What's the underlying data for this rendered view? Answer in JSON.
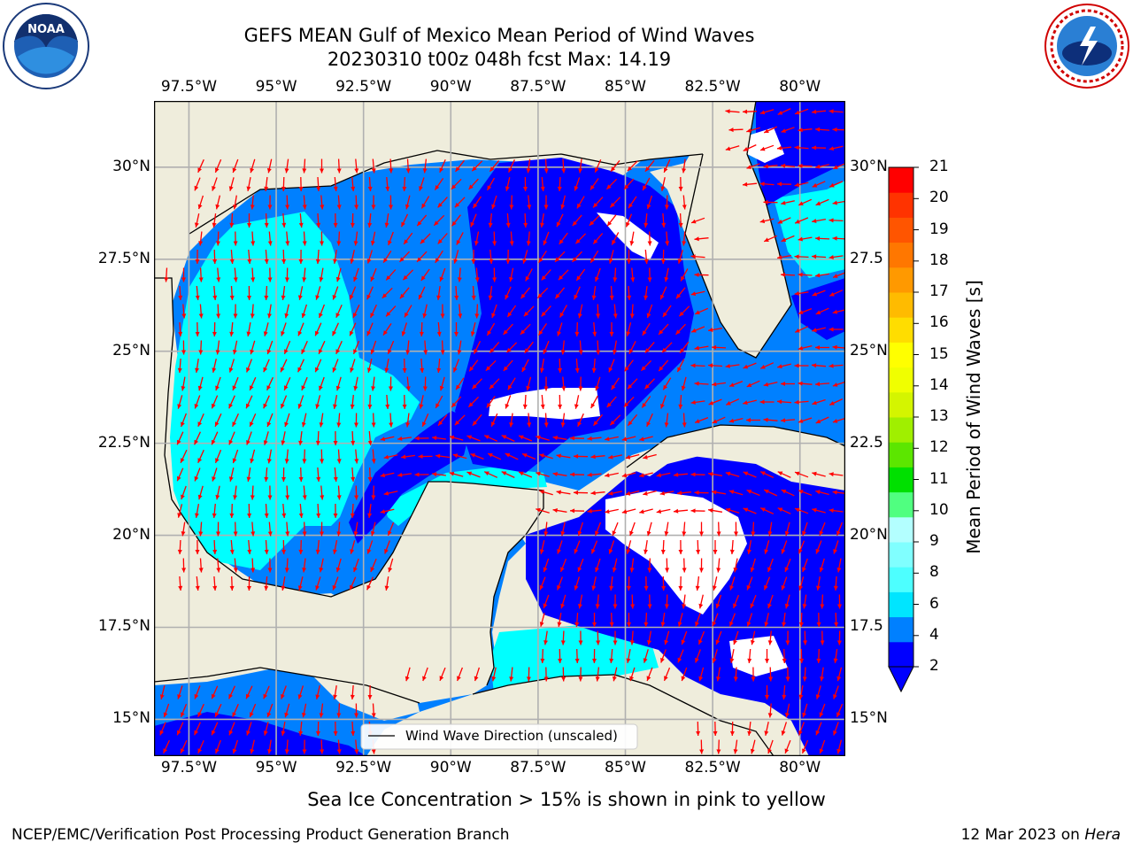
{
  "title": {
    "line1": "GEFS MEAN Gulf of Mexico Mean Period of Wind Waves",
    "line2": "20230310 t00z 048h fcst   Max: 14.19"
  },
  "logos": {
    "left": {
      "name": "noaa-logo",
      "text": "NOAA",
      "ring_text": "NATIONAL OCEANIC AND ATMOSPHERIC ADMINISTRATION · U.S. DEPARTMENT OF COMMERCE"
    },
    "right": {
      "name": "nws-logo",
      "ring_text": "NATIONAL WEATHER SERVICE"
    }
  },
  "map": {
    "region": "Gulf of Mexico",
    "lon_range": [
      -98.5,
      -78.7
    ],
    "lat_range": [
      14.0,
      31.8
    ],
    "lon_ticks": [
      {
        "value": -97.5,
        "label": "97.5°W"
      },
      {
        "value": -95,
        "label": "95°W"
      },
      {
        "value": -92.5,
        "label": "92.5°W"
      },
      {
        "value": -90,
        "label": "90°W"
      },
      {
        "value": -87.5,
        "label": "87.5°W"
      },
      {
        "value": -85,
        "label": "85°W"
      },
      {
        "value": -82.5,
        "label": "82.5°W"
      },
      {
        "value": -80,
        "label": "80°W"
      }
    ],
    "lat_ticks_left": [
      {
        "value": 30,
        "label": "30°N"
      },
      {
        "value": 27.5,
        "label": "27.5°N"
      },
      {
        "value": 25,
        "label": "25°N"
      },
      {
        "value": 22.5,
        "label": "22.5°N"
      },
      {
        "value": 20,
        "label": "20°N"
      },
      {
        "value": 17.5,
        "label": "17.5°N"
      },
      {
        "value": 15,
        "label": "15°N"
      }
    ],
    "lat_ticks_right": [
      {
        "value": 30,
        "label": "30°N"
      },
      {
        "value": 27.5,
        "label": "27.5"
      },
      {
        "value": 25,
        "label": "25°N"
      },
      {
        "value": 22.5,
        "label": "22.5"
      },
      {
        "value": 20,
        "label": "20°N"
      },
      {
        "value": 17.5,
        "label": "17.5"
      },
      {
        "value": 15,
        "label": "15°N"
      }
    ],
    "gridlines": true,
    "land_color": "#efeddc",
    "coast_color": "#000000",
    "arrow_color": "#ff0000",
    "legend_label": "Wind Wave Direction (unscaled)",
    "legend_placement": "bottom-center"
  },
  "colorbar": {
    "label": "Mean Period of Wind Waves [s]",
    "levels": [
      2,
      3,
      4,
      5,
      6,
      7,
      8,
      9,
      10,
      11,
      12,
      13,
      14,
      15,
      16,
      17,
      18,
      19,
      20,
      21
    ],
    "tick_labels": [
      "2",
      "4",
      "6",
      "8",
      "9",
      "10",
      "11",
      "12",
      "13",
      "14",
      "15",
      "16",
      "17",
      "18",
      "19",
      "20",
      "21"
    ],
    "colors": [
      "#0000ff",
      "#0080ff",
      "#00e5ff",
      "#4dffff",
      "#80ffff",
      "#b3ffff",
      "#50ff80",
      "#00e000",
      "#5ce600",
      "#a0ef00",
      "#d4f500",
      "#f0ff00",
      "#ffff00",
      "#ffdd00",
      "#ffbb00",
      "#ff9900",
      "#ff7700",
      "#ff5500",
      "#ff3300",
      "#ff0000"
    ],
    "extend": "min"
  },
  "field_legend": {
    "lt2": "#0000ff",
    "2-4": "#0080ff",
    "4-6": "#00ffff"
  },
  "sea_ice_note": "Sea Ice Concentration > 15% is shown in pink to yellow",
  "footer": {
    "left": "NCEP/EMC/Verification Post Processing Product Generation Branch",
    "right_prefix": "12 Mar 2023 on",
    "right_host": "Hera"
  }
}
